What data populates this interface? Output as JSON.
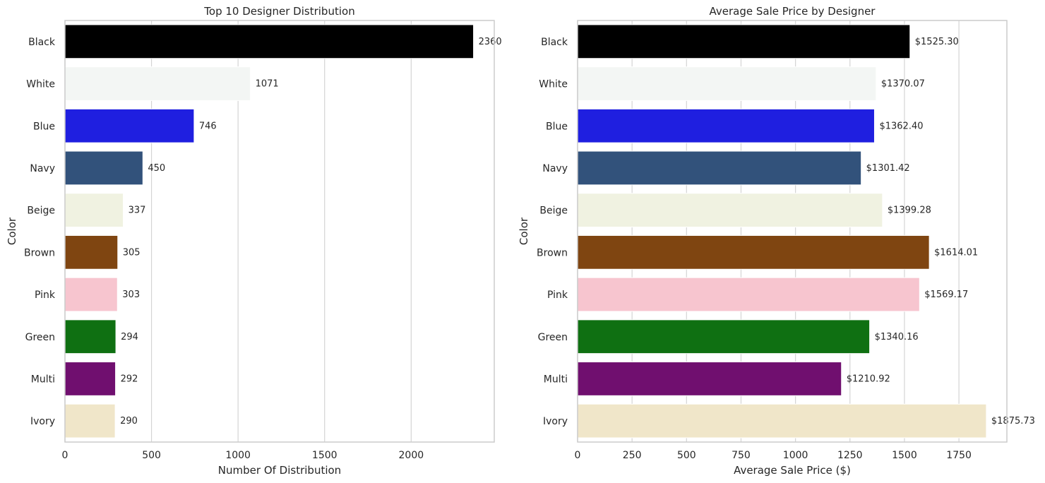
{
  "chart_data": [
    {
      "type": "bar",
      "orientation": "horizontal",
      "title": "Top 10 Designer Distribution",
      "xlabel": "Number Of Distribution",
      "ylabel": "Color",
      "categories": [
        "Black",
        "White",
        "Blue",
        "Navy",
        "Beige",
        "Brown",
        "Pink",
        "Green",
        "Multi",
        "Ivory"
      ],
      "values": [
        2360,
        1071,
        746,
        450,
        337,
        305,
        303,
        294,
        292,
        290
      ],
      "value_labels": [
        "2360",
        "1071",
        "746",
        "450",
        "337",
        "305",
        "303",
        "294",
        "292",
        "290"
      ],
      "xlim": [
        0,
        2480
      ],
      "xticks": [
        0,
        500,
        1000,
        1500,
        2000
      ],
      "xtick_labels": [
        "0",
        "500",
        "1000",
        "1500",
        "2000"
      ],
      "grid": "x",
      "colors": [
        "#000000",
        "#f3f6f4",
        "#1f1fe0",
        "#32527b",
        "#f0f2e1",
        "#7f4511",
        "#f7c5cf",
        "#0f7012",
        "#700f6f",
        "#f0e6c9"
      ]
    },
    {
      "type": "bar",
      "orientation": "horizontal",
      "title": "Average Sale Price by Designer",
      "xlabel": "Average Sale Price ($)",
      "ylabel": "Color",
      "categories": [
        "Black",
        "White",
        "Blue",
        "Navy",
        "Beige",
        "Brown",
        "Pink",
        "Green",
        "Multi",
        "Ivory"
      ],
      "values": [
        1525.3,
        1370.07,
        1362.4,
        1301.42,
        1399.28,
        1614.01,
        1569.17,
        1340.16,
        1210.92,
        1875.73
      ],
      "value_labels": [
        "$1525.30",
        "$1370.07",
        "$1362.40",
        "$1301.42",
        "$1399.28",
        "$1614.01",
        "$1569.17",
        "$1340.16",
        "$1210.92",
        "$1875.73"
      ],
      "xlim": [
        0,
        1970
      ],
      "xticks": [
        0,
        250,
        500,
        750,
        1000,
        1250,
        1500,
        1750
      ],
      "xtick_labels": [
        "0",
        "250",
        "500",
        "750",
        "1000",
        "1250",
        "1500",
        "1750"
      ],
      "grid": "x",
      "colors": [
        "#000000",
        "#f3f6f4",
        "#1f1fe0",
        "#32527b",
        "#f0f2e1",
        "#7f4511",
        "#f7c5cf",
        "#0f7012",
        "#700f6f",
        "#f0e6c9"
      ]
    }
  ]
}
